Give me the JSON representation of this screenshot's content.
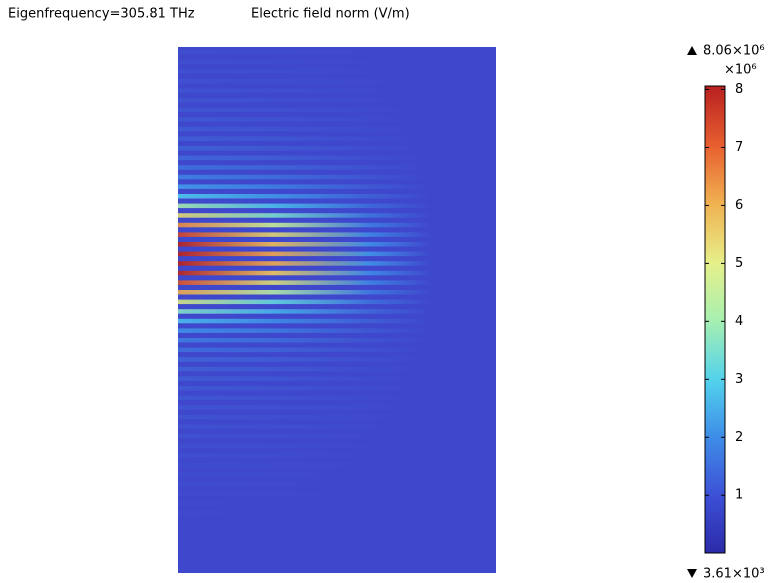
{
  "chart_data": {
    "type": "field",
    "subtitle": "Eigenfrequency=305.81 THz",
    "title": "Electric field norm (V/m)",
    "colorbar": {
      "max_label": "8.06×10⁶",
      "multiplier": "×10⁶",
      "min_label": "3.61×10³",
      "ylim": [
        0.00361,
        8.06
      ],
      "yticks": [
        1,
        2,
        3,
        4,
        5,
        6,
        7,
        8
      ]
    }
  }
}
